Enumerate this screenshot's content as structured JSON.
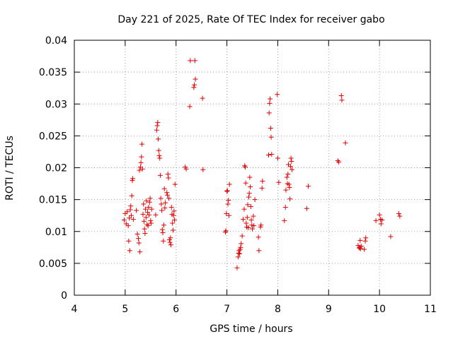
{
  "chart_data": {
    "type": "scatter",
    "title": "Day 221 of 2025, Rate Of TEC Index for receiver gabo",
    "xlabel": "GPS time / hours",
    "ylabel": "ROTI / TECUs",
    "xlim": [
      4,
      11
    ],
    "ylim": [
      0,
      0.04
    ],
    "xticks": [
      "4",
      "5",
      "6",
      "7",
      "8",
      "9",
      "10",
      "11"
    ],
    "yticks": [
      "0",
      "0.005",
      "0.01",
      "0.015",
      "0.02",
      "0.025",
      "0.03",
      "0.035",
      "0.04"
    ],
    "grid": true,
    "marker": "+",
    "color": "#e00000",
    "series": [
      {
        "points": [
          [
            4.98,
            0.0118
          ],
          [
            5.0,
            0.0128
          ],
          [
            5.02,
            0.0112
          ],
          [
            5.04,
            0.0131
          ],
          [
            5.06,
            0.0109
          ],
          [
            5.07,
            0.0085
          ],
          [
            5.08,
            0.0121
          ],
          [
            5.09,
            0.007
          ],
          [
            5.1,
            0.0134
          ],
          [
            5.11,
            0.014
          ],
          [
            5.12,
            0.0125
          ],
          [
            5.13,
            0.0156
          ],
          [
            5.14,
            0.018
          ],
          [
            5.15,
            0.0183
          ],
          [
            5.16,
            0.0119
          ],
          [
            5.22,
            0.0133
          ],
          [
            5.24,
            0.0096
          ],
          [
            5.26,
            0.0089
          ],
          [
            5.27,
            0.0082
          ],
          [
            5.28,
            0.0196
          ],
          [
            5.29,
            0.0068
          ],
          [
            5.3,
            0.0201
          ],
          [
            5.31,
            0.0208
          ],
          [
            5.32,
            0.0217
          ],
          [
            5.33,
            0.0237
          ],
          [
            5.34,
            0.0198
          ],
          [
            5.35,
            0.0127
          ],
          [
            5.36,
            0.0143
          ],
          [
            5.37,
            0.0116
          ],
          [
            5.38,
            0.0104
          ],
          [
            5.39,
            0.0097
          ],
          [
            5.4,
            0.0135
          ],
          [
            5.41,
            0.0122
          ],
          [
            5.42,
            0.0148
          ],
          [
            5.43,
            0.0111
          ],
          [
            5.44,
            0.013
          ],
          [
            5.45,
            0.0109
          ],
          [
            5.46,
            0.0138
          ],
          [
            5.47,
            0.0126
          ],
          [
            5.48,
            0.0146
          ],
          [
            5.49,
            0.0152
          ],
          [
            5.5,
            0.0117
          ],
          [
            5.51,
            0.0113
          ],
          [
            5.52,
            0.0135
          ],
          [
            5.6,
            0.0126
          ],
          [
            5.62,
            0.0259
          ],
          [
            5.63,
            0.0266
          ],
          [
            5.64,
            0.0271
          ],
          [
            5.65,
            0.0245
          ],
          [
            5.66,
            0.0227
          ],
          [
            5.67,
            0.0219
          ],
          [
            5.68,
            0.0215
          ],
          [
            5.69,
            0.0188
          ],
          [
            5.7,
            0.0152
          ],
          [
            5.71,
            0.0143
          ],
          [
            5.72,
            0.0133
          ],
          [
            5.73,
            0.0103
          ],
          [
            5.74,
            0.0098
          ],
          [
            5.75,
            0.0085
          ],
          [
            5.76,
            0.011
          ],
          [
            5.77,
            0.0167
          ],
          [
            5.78,
            0.0137
          ],
          [
            5.79,
            0.0145
          ],
          [
            5.82,
            0.0161
          ],
          [
            5.83,
            0.0157
          ],
          [
            5.84,
            0.019
          ],
          [
            5.85,
            0.0184
          ],
          [
            5.86,
            0.0152
          ],
          [
            5.87,
            0.0087
          ],
          [
            5.88,
            0.0083
          ],
          [
            5.89,
            0.009
          ],
          [
            5.9,
            0.0079
          ],
          [
            5.91,
            0.0138
          ],
          [
            5.92,
            0.0127
          ],
          [
            5.93,
            0.0113
          ],
          [
            5.94,
            0.0102
          ],
          [
            5.95,
            0.0125
          ],
          [
            5.96,
            0.0132
          ],
          [
            5.97,
            0.0118
          ],
          [
            5.98,
            0.0174
          ],
          [
            6.18,
            0.0201
          ],
          [
            6.2,
            0.0198
          ],
          [
            6.27,
            0.0296
          ],
          [
            6.28,
            0.0368
          ],
          [
            6.35,
            0.0326
          ],
          [
            6.36,
            0.033
          ],
          [
            6.37,
            0.0368
          ],
          [
            6.38,
            0.0339
          ],
          [
            6.52,
            0.0309
          ],
          [
            6.53,
            0.0197
          ],
          [
            6.97,
            0.0099
          ],
          [
            6.98,
            0.0101
          ],
          [
            6.99,
            0.0128
          ],
          [
            7.0,
            0.0163
          ],
          [
            7.01,
            0.0164
          ],
          [
            7.02,
            0.0143
          ],
          [
            7.03,
            0.0149
          ],
          [
            7.04,
            0.0125
          ],
          [
            7.05,
            0.0174
          ],
          [
            7.2,
            0.0043
          ],
          [
            7.22,
            0.006
          ],
          [
            7.23,
            0.0066
          ],
          [
            7.24,
            0.007
          ],
          [
            7.25,
            0.0065
          ],
          [
            7.26,
            0.0072
          ],
          [
            7.27,
            0.0075
          ],
          [
            7.28,
            0.0081
          ],
          [
            7.3,
            0.0093
          ],
          [
            7.32,
            0.0119
          ],
          [
            7.34,
            0.0135
          ],
          [
            7.35,
            0.0203
          ],
          [
            7.36,
            0.0201
          ],
          [
            7.37,
            0.0176
          ],
          [
            7.38,
            0.0113
          ],
          [
            7.39,
            0.0107
          ],
          [
            7.4,
            0.0122
          ],
          [
            7.41,
            0.0142
          ],
          [
            7.42,
            0.0106
          ],
          [
            7.43,
            0.0154
          ],
          [
            7.44,
            0.016
          ],
          [
            7.45,
            0.0185
          ],
          [
            7.46,
            0.017
          ],
          [
            7.47,
            0.0139
          ],
          [
            7.48,
            0.0118
          ],
          [
            7.49,
            0.011
          ],
          [
            7.5,
            0.0104
          ],
          [
            7.52,
            0.0124
          ],
          [
            7.53,
            0.0109
          ],
          [
            7.55,
            0.015
          ],
          [
            7.62,
            0.0091
          ],
          [
            7.63,
            0.007
          ],
          [
            7.66,
            0.0107
          ],
          [
            7.67,
            0.011
          ],
          [
            7.69,
            0.0168
          ],
          [
            7.7,
            0.0179
          ],
          [
            7.82,
            0.022
          ],
          [
            7.83,
            0.0286
          ],
          [
            7.84,
            0.0301
          ],
          [
            7.85,
            0.0308
          ],
          [
            7.86,
            0.0262
          ],
          [
            7.87,
            0.0248
          ],
          [
            7.88,
            0.0221
          ],
          [
            7.99,
            0.0315
          ],
          [
            8.0,
            0.0215
          ],
          [
            8.02,
            0.0177
          ],
          [
            8.13,
            0.0117
          ],
          [
            8.15,
            0.0138
          ],
          [
            8.16,
            0.0165
          ],
          [
            8.18,
            0.0185
          ],
          [
            8.19,
            0.0175
          ],
          [
            8.2,
            0.019
          ],
          [
            8.21,
            0.0205
          ],
          [
            8.22,
            0.0174
          ],
          [
            8.23,
            0.0169
          ],
          [
            8.24,
            0.0151
          ],
          [
            8.25,
            0.0202
          ],
          [
            8.26,
            0.0215
          ],
          [
            8.27,
            0.021
          ],
          [
            8.28,
            0.0197
          ],
          [
            8.57,
            0.0136
          ],
          [
            8.6,
            0.0171
          ],
          [
            9.18,
            0.0211
          ],
          [
            9.2,
            0.0209
          ],
          [
            9.25,
            0.0313
          ],
          [
            9.26,
            0.0306
          ],
          [
            9.33,
            0.0239
          ],
          [
            9.58,
            0.0078
          ],
          [
            9.6,
            0.0074
          ],
          [
            9.61,
            0.0075
          ],
          [
            9.62,
            0.0086
          ],
          [
            9.63,
            0.0073
          ],
          [
            9.64,
            0.0077
          ],
          [
            9.7,
            0.0072
          ],
          [
            9.72,
            0.0085
          ],
          [
            9.73,
            0.009
          ],
          [
            9.93,
            0.0117
          ],
          [
            10.0,
            0.0126
          ],
          [
            10.02,
            0.0119
          ],
          [
            10.03,
            0.0112
          ],
          [
            10.05,
            0.0118
          ],
          [
            10.22,
            0.0092
          ],
          [
            10.38,
            0.0128
          ],
          [
            10.4,
            0.0124
          ]
        ]
      }
    ]
  }
}
